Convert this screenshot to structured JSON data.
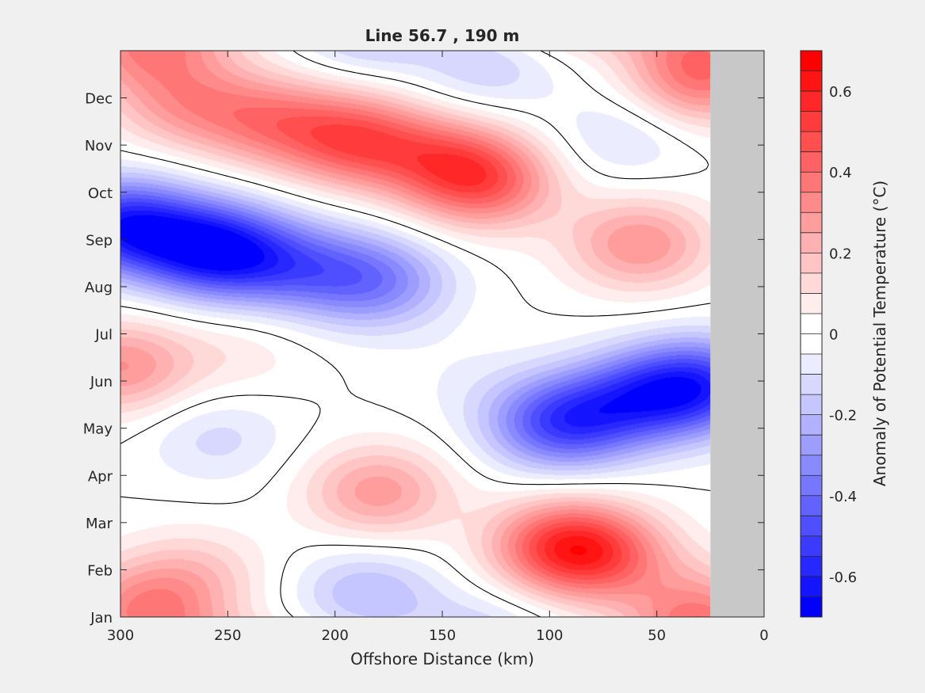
{
  "chart_data": {
    "type": "heatmap",
    "subtype": "filled-contour",
    "title": "Line 56.7 , 190 m",
    "xlabel": "Offshore Distance (km)",
    "ylabel": "",
    "xlim": [
      0,
      300
    ],
    "x_reversed": true,
    "x_ticks": [
      "300",
      "250",
      "200",
      "150",
      "100",
      "50",
      "0"
    ],
    "x_tick_values": [
      300,
      250,
      200,
      150,
      100,
      50,
      0
    ],
    "y_ticks": [
      "Jan",
      "Feb",
      "Mar",
      "Apr",
      "May",
      "Jun",
      "Jul",
      "Aug",
      "Sep",
      "Oct",
      "Nov",
      "Dec"
    ],
    "y_tick_values": [
      0,
      1,
      2,
      3,
      4,
      5,
      6,
      7,
      8,
      9,
      10,
      11
    ],
    "ylim": [
      0,
      12
    ],
    "no_data_region_km": [
      0,
      25
    ],
    "zero_contour_color": "black",
    "colorbar": {
      "label": "Anomaly of Potential Temperature (°C)",
      "range": [
        -0.7,
        0.7
      ],
      "step": 0.05,
      "tick_labels": [
        "0.6",
        "0.4",
        "0.2",
        "0",
        "-0.2",
        "-0.4",
        "-0.6"
      ],
      "tick_values": [
        0.6,
        0.4,
        0.2,
        0,
        -0.2,
        -0.4,
        -0.6
      ],
      "colormap": "blue-white-red"
    },
    "features": [
      {
        "x_km": 300,
        "month": 8.3,
        "value": -0.55
      },
      {
        "x_km": 250,
        "month": 7.7,
        "value": -0.4
      },
      {
        "x_km": 180,
        "month": 7.1,
        "value": -0.32
      },
      {
        "x_km": 265,
        "month": 7.9,
        "value": -0.3
      },
      {
        "x_km": 215,
        "month": 7.4,
        "value": -0.28
      },
      {
        "x_km": 190,
        "month": 10.1,
        "value": 0.42
      },
      {
        "x_km": 230,
        "month": 10.5,
        "value": 0.3
      },
      {
        "x_km": 130,
        "month": 9.2,
        "value": 0.38
      },
      {
        "x_km": 150,
        "month": 9.7,
        "value": 0.28
      },
      {
        "x_km": 270,
        "month": 10.9,
        "value": 0.25
      },
      {
        "x_km": 30,
        "month": 11.3,
        "value": 0.3
      },
      {
        "x_km": 58,
        "month": 7.9,
        "value": 0.3
      },
      {
        "x_km": 130,
        "month": 11.6,
        "value": -0.14
      },
      {
        "x_km": 65,
        "month": 10.2,
        "value": -0.12
      },
      {
        "x_km": 300,
        "month": 5.3,
        "value": 0.3
      },
      {
        "x_km": 245,
        "month": 5.6,
        "value": 0.08
      },
      {
        "x_km": 95,
        "month": 4.1,
        "value": -0.48
      },
      {
        "x_km": 30,
        "month": 4.9,
        "value": -0.5
      },
      {
        "x_km": 60,
        "month": 4.6,
        "value": -0.35
      },
      {
        "x_km": 255,
        "month": 3.8,
        "value": -0.12
      },
      {
        "x_km": 180,
        "month": 2.65,
        "value": 0.28
      },
      {
        "x_km": 95,
        "month": 1.5,
        "value": 0.42
      },
      {
        "x_km": 75,
        "month": 1.3,
        "value": 0.3
      },
      {
        "x_km": 290,
        "month": 0.15,
        "value": 0.3
      },
      {
        "x_km": 265,
        "month": 0.9,
        "value": 0.15
      },
      {
        "x_km": 185,
        "month": 0.5,
        "value": -0.2
      },
      {
        "x_km": 30,
        "month": 0.2,
        "value": 0.22
      },
      {
        "x_km": 140,
        "month": 5.0,
        "value": -0.04
      }
    ]
  }
}
